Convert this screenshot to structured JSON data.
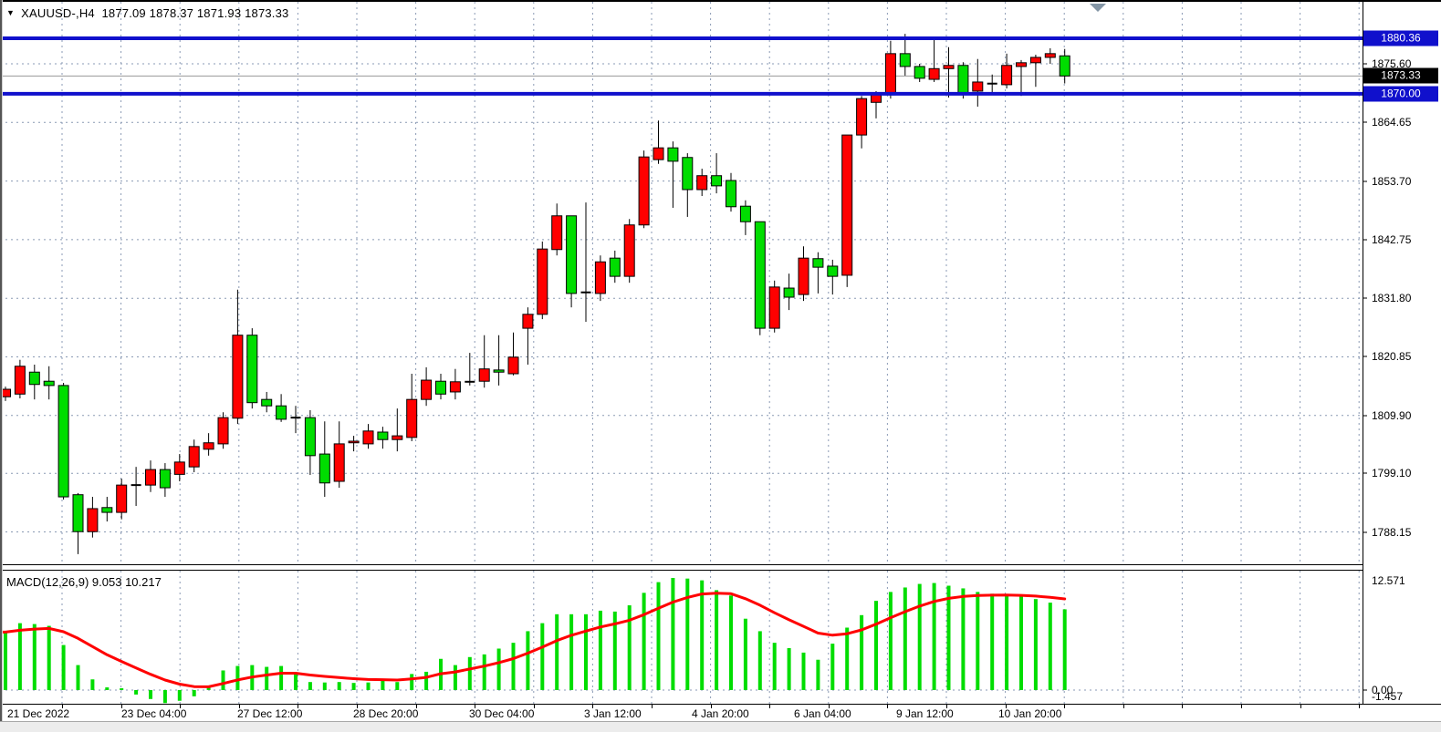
{
  "header": {
    "dropdown_icon": "▼",
    "title": "XAUUSD-,H4  1877.09 1878.37 1871.93 1873.33"
  },
  "price_axis": {
    "badges": {
      "resistance": "1880.36",
      "last": "1873.33",
      "support": "1870.00"
    }
  },
  "macd_panel": {
    "label": "MACD(12,26,9) 9.053 10.217",
    "axis_tick_labels": [
      "12.571",
      "0.00",
      "-1.457"
    ]
  },
  "colors": {
    "bull_candle": "#ff0000",
    "bear_candle": "#00dd00",
    "candle_outline": "#000000",
    "hline_blue": "#1010cc",
    "grid": "#8a9ab4",
    "last_price_line": "#9a9a9a",
    "last_badge_bg": "#000000",
    "macd_histogram": "#00dd00",
    "macd_signal": "#ff0000",
    "axis_text": "#000000"
  },
  "chart_data": {
    "type": "candlestick",
    "title": "XAUUSD-,H4",
    "symbol": "XAUUSD-",
    "timeframe": "H4",
    "last_ohlc": {
      "open": 1877.09,
      "high": 1878.37,
      "low": 1871.93,
      "close": 1873.33
    },
    "price_axis_ticks": [
      "1875.60",
      "1864.65",
      "1853.70",
      "1842.75",
      "1831.80",
      "1820.85",
      "1809.90",
      "1799.10",
      "1788.15"
    ],
    "hlines": [
      {
        "name": "resistance",
        "price": 1880.36
      },
      {
        "name": "support",
        "price": 1870.0
      }
    ],
    "last_price": 1873.33,
    "time_labels": [
      "21 Dec 2022",
      "23 Dec 04:00",
      "27 Dec 12:00",
      "28 Dec 20:00",
      "30 Dec 04:00",
      "3 Jan 12:00",
      "4 Jan 20:00",
      "6 Jan 04:00",
      "9 Jan 12:00",
      "10 Jan 20:00"
    ],
    "time_label_x": [
      8,
      133,
      260,
      387,
      514,
      640,
      758,
      870,
      982,
      1094
    ],
    "candles": [
      [
        1813.4,
        1815.3,
        1812.6,
        1814.8
      ],
      [
        1813.9,
        1820.3,
        1813.1,
        1819.1
      ],
      [
        1818.0,
        1819.4,
        1812.9,
        1815.7
      ],
      [
        1816.3,
        1819.1,
        1812.9,
        1815.5
      ],
      [
        1815.5,
        1816.0,
        1794.2,
        1794.7
      ],
      [
        1795.1,
        1795.4,
        1784.0,
        1788.2
      ],
      [
        1788.2,
        1794.7,
        1787.1,
        1792.5
      ],
      [
        1792.7,
        1794.7,
        1790.1,
        1791.8
      ],
      [
        1791.8,
        1798.1,
        1790.5,
        1796.9
      ],
      [
        1796.9,
        1800.3,
        1793.0,
        1796.9
      ],
      [
        1796.9,
        1801.5,
        1795.6,
        1799.8
      ],
      [
        1799.8,
        1801.0,
        1794.7,
        1796.4
      ],
      [
        1798.9,
        1802.7,
        1797.6,
        1801.2
      ],
      [
        1800.3,
        1805.4,
        1799.3,
        1804.1
      ],
      [
        1803.6,
        1806.6,
        1802.4,
        1804.8
      ],
      [
        1804.6,
        1810.5,
        1803.7,
        1809.5
      ],
      [
        1809.4,
        1833.4,
        1808.3,
        1824.9
      ],
      [
        1824.9,
        1826.2,
        1811.2,
        1812.3
      ],
      [
        1812.9,
        1814.3,
        1810.5,
        1811.7
      ],
      [
        1811.7,
        1813.9,
        1808.7,
        1809.2
      ],
      [
        1809.5,
        1811.7,
        1806.6,
        1809.5
      ],
      [
        1809.5,
        1810.9,
        1798.8,
        1802.4
      ],
      [
        1802.7,
        1808.8,
        1794.7,
        1797.3
      ],
      [
        1797.6,
        1808.8,
        1796.4,
        1804.6
      ],
      [
        1804.8,
        1806.1,
        1803.2,
        1805.1
      ],
      [
        1804.6,
        1808.3,
        1803.7,
        1807.0
      ],
      [
        1806.8,
        1807.8,
        1803.7,
        1805.4
      ],
      [
        1805.4,
        1811.2,
        1803.2,
        1806.1
      ],
      [
        1805.8,
        1817.7,
        1805.1,
        1812.9
      ],
      [
        1812.9,
        1818.9,
        1811.7,
        1816.5
      ],
      [
        1816.3,
        1817.7,
        1812.9,
        1813.9
      ],
      [
        1814.3,
        1818.6,
        1812.9,
        1816.2
      ],
      [
        1816.2,
        1821.6,
        1815.5,
        1816.2
      ],
      [
        1816.3,
        1824.9,
        1815.1,
        1818.6
      ],
      [
        1818.4,
        1824.9,
        1815.5,
        1818.0
      ],
      [
        1817.7,
        1825.4,
        1817.4,
        1820.8
      ],
      [
        1826.2,
        1830.1,
        1819.4,
        1828.8
      ],
      [
        1828.8,
        1842.4,
        1827.9,
        1841.0
      ],
      [
        1840.9,
        1849.5,
        1839.8,
        1847.2
      ],
      [
        1847.2,
        1847.2,
        1830.1,
        1832.7
      ],
      [
        1832.9,
        1849.7,
        1827.4,
        1832.9
      ],
      [
        1832.7,
        1839.8,
        1831.3,
        1838.6
      ],
      [
        1839.3,
        1840.7,
        1834.7,
        1835.9
      ],
      [
        1835.9,
        1846.6,
        1834.7,
        1845.5
      ],
      [
        1845.5,
        1859.4,
        1844.9,
        1858.2
      ],
      [
        1857.7,
        1865.0,
        1856.9,
        1859.9
      ],
      [
        1859.9,
        1861.1,
        1848.7,
        1857.4
      ],
      [
        1858.1,
        1858.9,
        1847.0,
        1852.1
      ],
      [
        1852.1,
        1856.0,
        1850.9,
        1854.7
      ],
      [
        1854.7,
        1858.9,
        1851.4,
        1852.8
      ],
      [
        1853.8,
        1855.2,
        1848.0,
        1848.9
      ],
      [
        1849.0,
        1850.1,
        1843.6,
        1846.1
      ],
      [
        1846.1,
        1846.1,
        1824.9,
        1826.2
      ],
      [
        1826.2,
        1835.1,
        1825.4,
        1833.9
      ],
      [
        1833.7,
        1836.4,
        1829.6,
        1832.0
      ],
      [
        1832.5,
        1841.5,
        1831.3,
        1839.3
      ],
      [
        1839.2,
        1840.4,
        1832.7,
        1837.6
      ],
      [
        1837.8,
        1839.0,
        1832.5,
        1835.9
      ],
      [
        1836.1,
        1862.3,
        1833.9,
        1862.3
      ],
      [
        1862.3,
        1869.6,
        1859.8,
        1869.1
      ],
      [
        1868.4,
        1870.5,
        1865.4,
        1869.8
      ],
      [
        1869.8,
        1879.9,
        1869.1,
        1877.5
      ],
      [
        1877.5,
        1881.2,
        1873.4,
        1875.1
      ],
      [
        1875.1,
        1875.6,
        1872.2,
        1872.9
      ],
      [
        1872.7,
        1880.4,
        1872.2,
        1874.7
      ],
      [
        1874.7,
        1878.7,
        1869.3,
        1875.3
      ],
      [
        1875.3,
        1875.9,
        1869.1,
        1870.2
      ],
      [
        1870.5,
        1876.5,
        1867.6,
        1872.2
      ],
      [
        1871.9,
        1873.6,
        1870.2,
        1871.9
      ],
      [
        1871.7,
        1877.5,
        1871.0,
        1875.3
      ],
      [
        1875.1,
        1876.3,
        1869.6,
        1875.8
      ],
      [
        1875.8,
        1877.3,
        1871.3,
        1876.8
      ],
      [
        1876.8,
        1878.5,
        1875.6,
        1877.5
      ],
      [
        1877.09,
        1878.37,
        1871.93,
        1873.33
      ]
    ],
    "macd": {
      "name": "MACD",
      "params": "12,26,9",
      "macd_value": 9.053,
      "signal_value": 10.217,
      "axis_max": 12.571,
      "axis_min": -1.457,
      "histogram": [
        6.5,
        7.5,
        7.4,
        7.2,
        5.05,
        2.8,
        1.2,
        0.3,
        0.2,
        -0.5,
        -1.0,
        -1.457,
        -1.2,
        -0.7,
        0.3,
        2.2,
        2.7,
        2.8,
        2.6,
        2.7,
        1.9,
        0.9,
        0.85,
        0.9,
        0.8,
        0.85,
        1.1,
        0.9,
        1.8,
        2.05,
        3.5,
        2.8,
        3.7,
        4.0,
        4.65,
        5.3,
        6.6,
        7.5,
        8.5,
        8.5,
        8.5,
        8.9,
        8.8,
        9.5,
        10.9,
        12.1,
        12.571,
        12.5,
        12.3,
        11.2,
        10.6,
        8.0,
        6.6,
        5.3,
        4.7,
        4.2,
        3.4,
        5.2,
        7.0,
        8.4,
        10.0,
        11.0,
        11.5,
        11.9,
        12.0,
        11.7,
        11.4,
        11.0,
        10.8,
        10.7,
        10.5,
        10.2,
        9.8,
        9.053
      ],
      "signal": [
        6.5,
        6.7,
        6.84,
        6.91,
        6.54,
        5.79,
        4.87,
        3.96,
        3.21,
        2.47,
        1.77,
        1.12,
        0.66,
        0.39,
        0.37,
        0.74,
        1.13,
        1.46,
        1.69,
        1.89,
        1.89,
        1.69,
        1.53,
        1.4,
        1.28,
        1.19,
        1.17,
        1.12,
        1.26,
        1.42,
        1.83,
        2.03,
        2.36,
        2.69,
        3.08,
        3.53,
        4.14,
        4.81,
        5.55,
        6.14,
        6.61,
        7.07,
        7.42,
        7.83,
        8.45,
        9.18,
        9.86,
        10.38,
        10.77,
        10.85,
        10.8,
        10.24,
        9.51,
        8.67,
        7.88,
        7.14,
        6.39,
        6.15,
        6.32,
        6.74,
        7.39,
        8.11,
        8.79,
        9.41,
        9.93,
        10.28,
        10.5,
        10.6,
        10.64,
        10.65,
        10.62,
        10.54,
        10.39,
        10.217
      ]
    }
  }
}
